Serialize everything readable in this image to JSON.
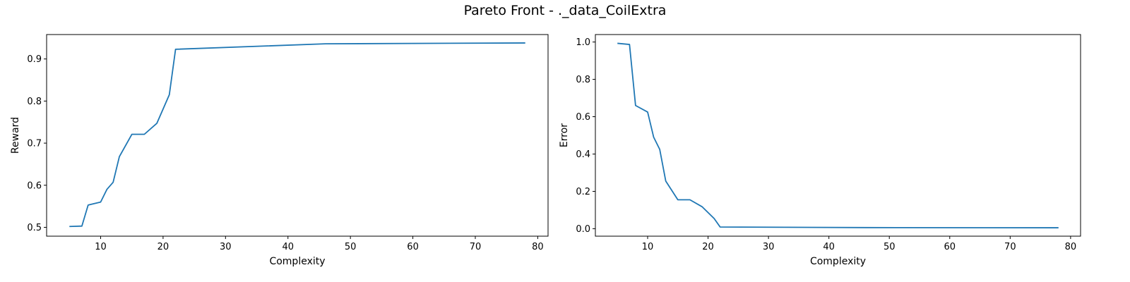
{
  "figure": {
    "suptitle": "Pareto Front - ._data_CoilExtra"
  },
  "chart_data": [
    {
      "type": "line",
      "title": "",
      "xlabel": "Complexity",
      "ylabel": "Reward",
      "xlim": [
        1.35,
        81.65
      ],
      "ylim": [
        0.479,
        0.958
      ],
      "xticks": [
        10,
        20,
        30,
        40,
        50,
        60,
        70,
        80
      ],
      "yticks": [
        0.5,
        0.6,
        0.7,
        0.8,
        0.9
      ],
      "ytick_labels": [
        "0.5",
        "0.6",
        "0.7",
        "0.8",
        "0.9"
      ],
      "grid": false,
      "color": "#1f77b4",
      "series": [
        {
          "x": [
            5,
            7,
            8,
            10,
            11,
            12,
            13,
            15,
            17,
            19,
            21,
            22,
            46,
            78
          ],
          "y": [
            0.502,
            0.503,
            0.553,
            0.56,
            0.59,
            0.607,
            0.668,
            0.721,
            0.721,
            0.747,
            0.815,
            0.923,
            0.936,
            0.938
          ]
        }
      ]
    },
    {
      "type": "line",
      "title": "",
      "xlabel": "Complexity",
      "ylabel": "Error",
      "xlim": [
        1.35,
        81.65
      ],
      "ylim": [
        -0.04,
        1.04
      ],
      "xticks": [
        10,
        20,
        30,
        40,
        50,
        60,
        70,
        80
      ],
      "yticks": [
        0.0,
        0.2,
        0.4,
        0.6,
        0.8,
        1.0
      ],
      "ytick_labels": [
        "0.0",
        "0.2",
        "0.4",
        "0.6",
        "0.8",
        "1.0"
      ],
      "grid": false,
      "color": "#1f77b4",
      "series": [
        {
          "x": [
            5,
            7,
            8,
            10,
            11,
            12,
            13,
            15,
            17,
            19,
            21,
            22,
            46,
            78
          ],
          "y": [
            0.993,
            0.987,
            0.66,
            0.625,
            0.49,
            0.425,
            0.255,
            0.155,
            0.155,
            0.118,
            0.055,
            0.009,
            0.006,
            0.005
          ]
        }
      ]
    }
  ]
}
